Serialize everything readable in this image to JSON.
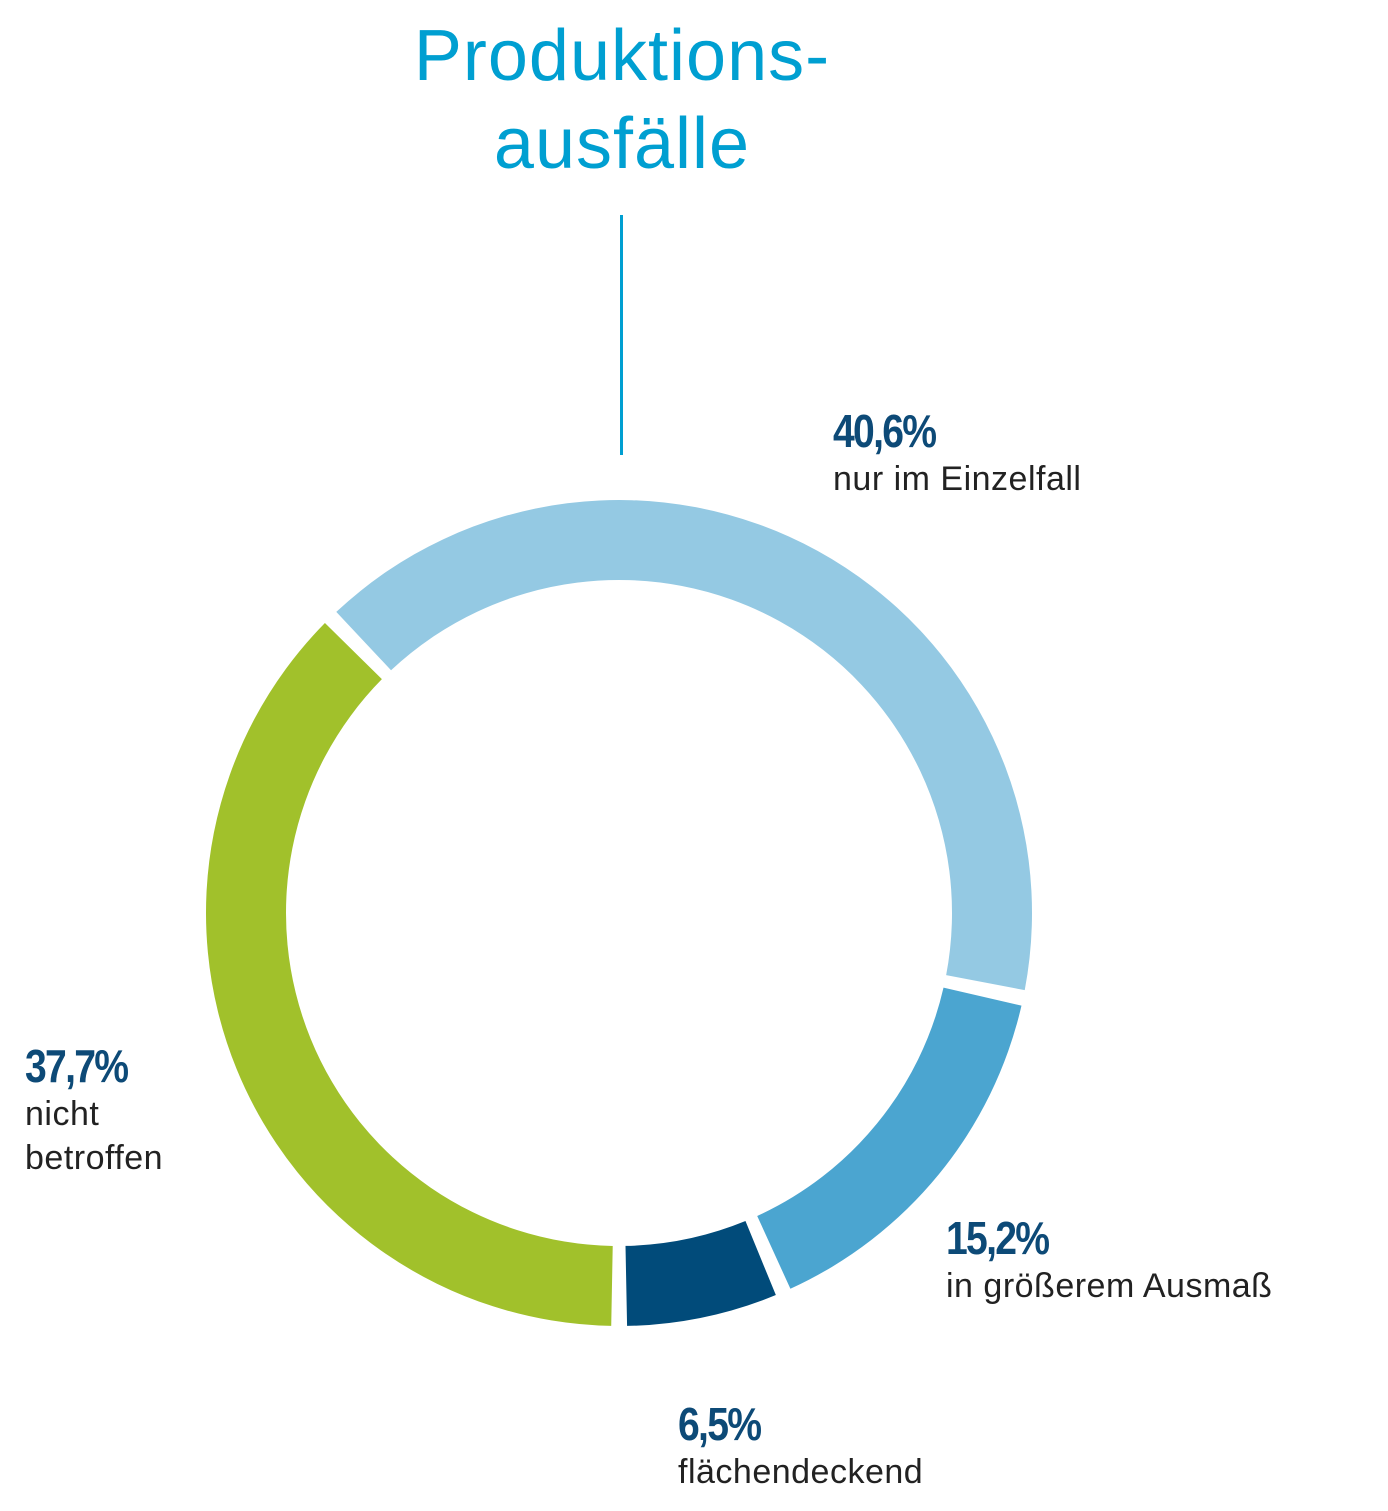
{
  "chart_data": {
    "type": "pie",
    "variant": "donut",
    "title": [
      "Produktions-",
      "ausfälle"
    ],
    "slices": [
      {
        "label": "nur im Einzelfall",
        "value": 40.6,
        "value_label": "40,6%",
        "color": "#94c9e3"
      },
      {
        "label": "in größerem Ausmaß",
        "value": 15.2,
        "value_label": "15,2%",
        "color": "#4ba5d0"
      },
      {
        "label": "flächendeckend",
        "value": 6.5,
        "value_label": "6,5%",
        "color": "#014b7a"
      },
      {
        "label": "nicht betroffen",
        "label_lines": [
          "nicht",
          "betroffen"
        ],
        "value": 37.7,
        "value_label": "37,7%",
        "color": "#a1c12b"
      }
    ],
    "title_color": "#009fd1",
    "value_label_color": "#0d4a77"
  }
}
